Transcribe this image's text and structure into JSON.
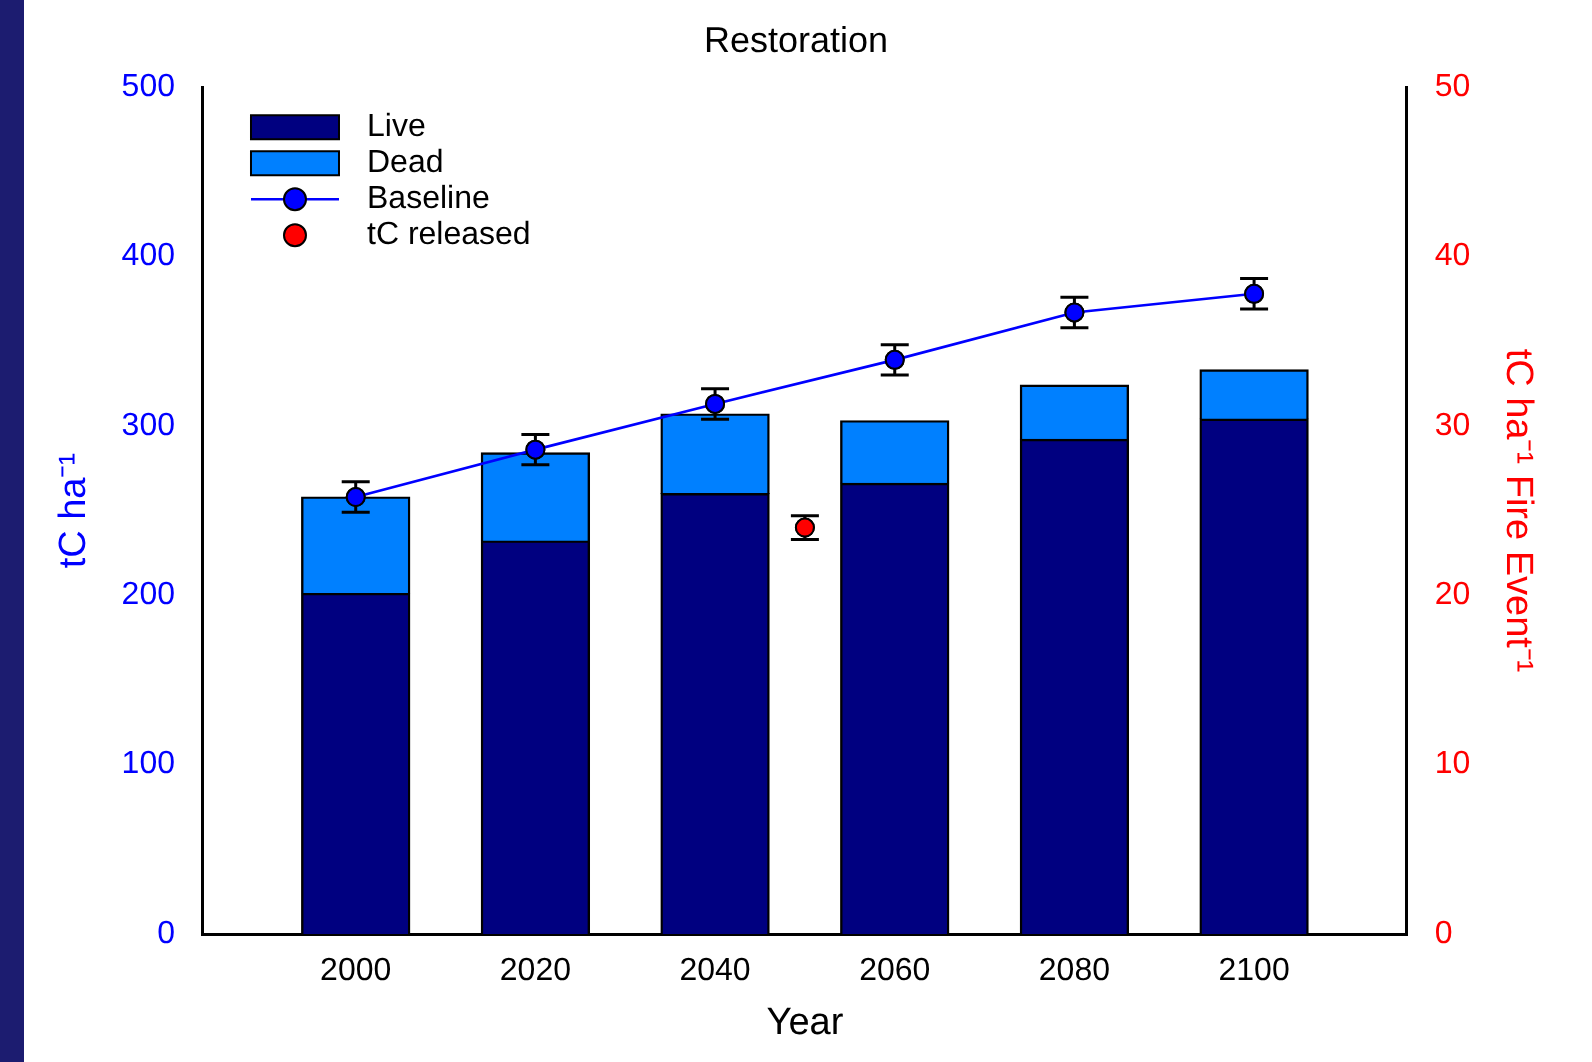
{
  "chart_data": {
    "type": "bar",
    "title": "Restoration",
    "xlabel": "Year",
    "ylabel": "tC ha⁻¹",
    "y2label": "tC ha⁻¹ Fire Event⁻¹",
    "x": [
      2000,
      2020,
      2040,
      2060,
      2080,
      2100
    ],
    "stacked": true,
    "series": [
      {
        "name": "Live",
        "color": "#000080",
        "values": [
          201,
          232,
          260,
          266,
          292,
          304
        ]
      },
      {
        "name": "Dead",
        "color": "#0080ff",
        "values": [
          57,
          52,
          47,
          37,
          32,
          29
        ]
      },
      {
        "name": "Baseline",
        "type": "line",
        "color": "#0000ff",
        "values": [
          258,
          286,
          313,
          339,
          367,
          378
        ],
        "errors": [
          9,
          9,
          9,
          9,
          9,
          9
        ]
      },
      {
        "name": "tC released",
        "type": "scatter",
        "axis": "y2",
        "color": "#ff0000",
        "x": [
          2050
        ],
        "values": [
          24
        ],
        "errors": [
          0.7
        ]
      }
    ],
    "xlim": [
      1983,
      2117
    ],
    "xticks": [
      2000,
      2020,
      2040,
      2060,
      2080,
      2100
    ],
    "ylim": [
      0,
      500
    ],
    "yticks": [
      0,
      100,
      200,
      300,
      400,
      500
    ],
    "y2lim": [
      0,
      50
    ],
    "y2ticks": [
      0,
      10,
      20,
      30,
      40,
      50
    ],
    "grid": false,
    "legend": "top left",
    "marker": "circle"
  }
}
